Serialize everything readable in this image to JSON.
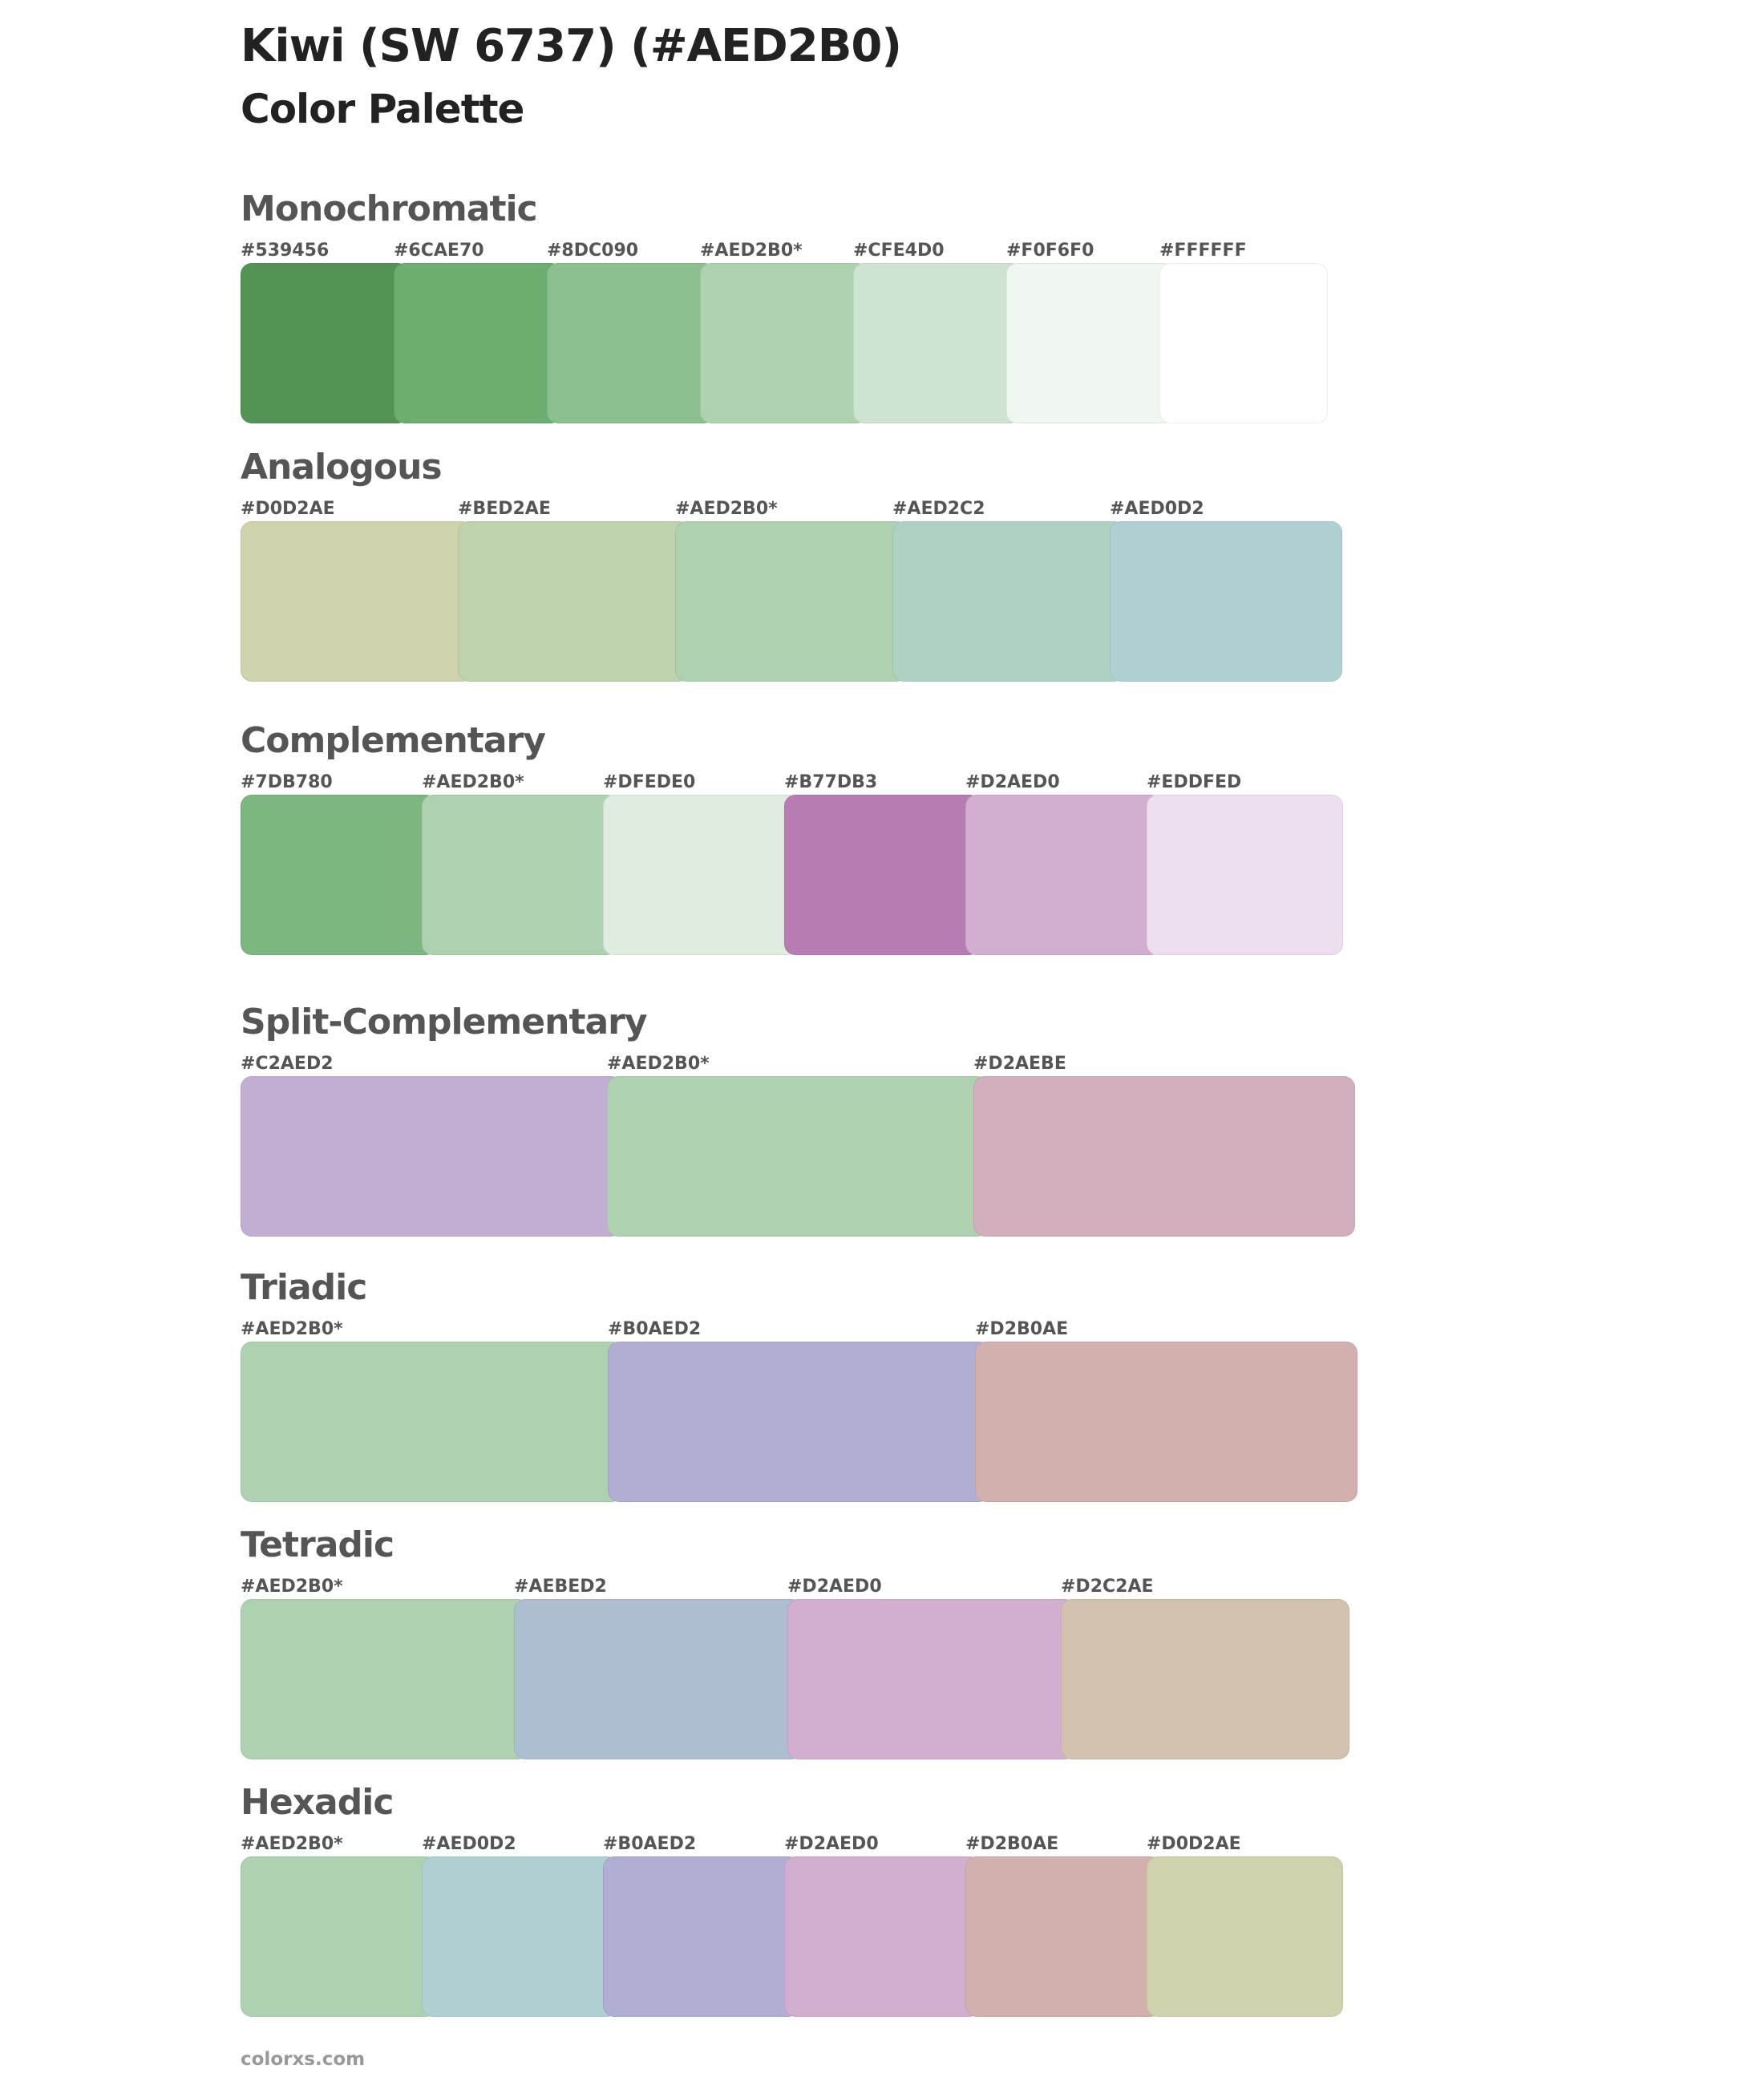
{
  "header": {
    "title": "Kiwi (SW 6737) (#AED2B0)",
    "subtitle": "Color Palette"
  },
  "sections": [
    {
      "title": "Monochromatic",
      "swatches": [
        {
          "label": "#539456",
          "color": "#539456"
        },
        {
          "label": "#6CAE70",
          "color": "#6CAE70"
        },
        {
          "label": "#8DC090",
          "color": "#8DC090"
        },
        {
          "label": "#AED2B0*",
          "color": "#AED2B0"
        },
        {
          "label": "#CFE4D0",
          "color": "#CFE4D0"
        },
        {
          "label": "#F0F6F0",
          "color": "#F0F6F0"
        },
        {
          "label": "#FFFFFF",
          "color": "#FFFFFF"
        }
      ]
    },
    {
      "title": "Analogous",
      "swatches": [
        {
          "label": "#D0D2AE",
          "color": "#D0D2AE"
        },
        {
          "label": "#BED2AE",
          "color": "#BED2AE"
        },
        {
          "label": "#AED2B0*",
          "color": "#AED2B0"
        },
        {
          "label": "#AED2C2",
          "color": "#AED2C2"
        },
        {
          "label": "#AED0D2",
          "color": "#AED0D2"
        }
      ]
    },
    {
      "title": "Complementary",
      "swatches": [
        {
          "label": "#7DB780",
          "color": "#7DB780"
        },
        {
          "label": "#AED2B0*",
          "color": "#AED2B0"
        },
        {
          "label": "#DFEDE0",
          "color": "#DFEDE0"
        },
        {
          "label": "#B77DB3",
          "color": "#B77DB3"
        },
        {
          "label": "#D2AED0",
          "color": "#D2AED0"
        },
        {
          "label": "#EDDFED",
          "color": "#EDDFED"
        }
      ]
    },
    {
      "title": "Split-Complementary",
      "swatches": [
        {
          "label": "#C2AED2",
          "color": "#C2AED2"
        },
        {
          "label": "#AED2B0*",
          "color": "#AED2B0"
        },
        {
          "label": "#D2AEBE",
          "color": "#D2AEBE"
        }
      ]
    },
    {
      "title": "Triadic",
      "swatches": [
        {
          "label": "#AED2B0*",
          "color": "#AED2B0"
        },
        {
          "label": "#B0AED2",
          "color": "#B0AED2"
        },
        {
          "label": "#D2B0AE",
          "color": "#D2B0AE"
        }
      ]
    },
    {
      "title": "Tetradic",
      "swatches": [
        {
          "label": "#AED2B0*",
          "color": "#AED2B0"
        },
        {
          "label": "#AEBED2",
          "color": "#AEBED2"
        },
        {
          "label": "#D2AED0",
          "color": "#D2AED0"
        },
        {
          "label": "#D2C2AE",
          "color": "#D2C2AE"
        }
      ]
    },
    {
      "title": "Hexadic",
      "swatches": [
        {
          "label": "#AED2B0*",
          "color": "#AED2B0"
        },
        {
          "label": "#AED0D2",
          "color": "#AED0D2"
        },
        {
          "label": "#B0AED2",
          "color": "#B0AED2"
        },
        {
          "label": "#D2AED0",
          "color": "#D2AED0"
        },
        {
          "label": "#D2B0AE",
          "color": "#D2B0AE"
        },
        {
          "label": "#D0D2AE",
          "color": "#D0D2AE"
        }
      ]
    }
  ],
  "footer": {
    "text": "colorxs.com"
  }
}
